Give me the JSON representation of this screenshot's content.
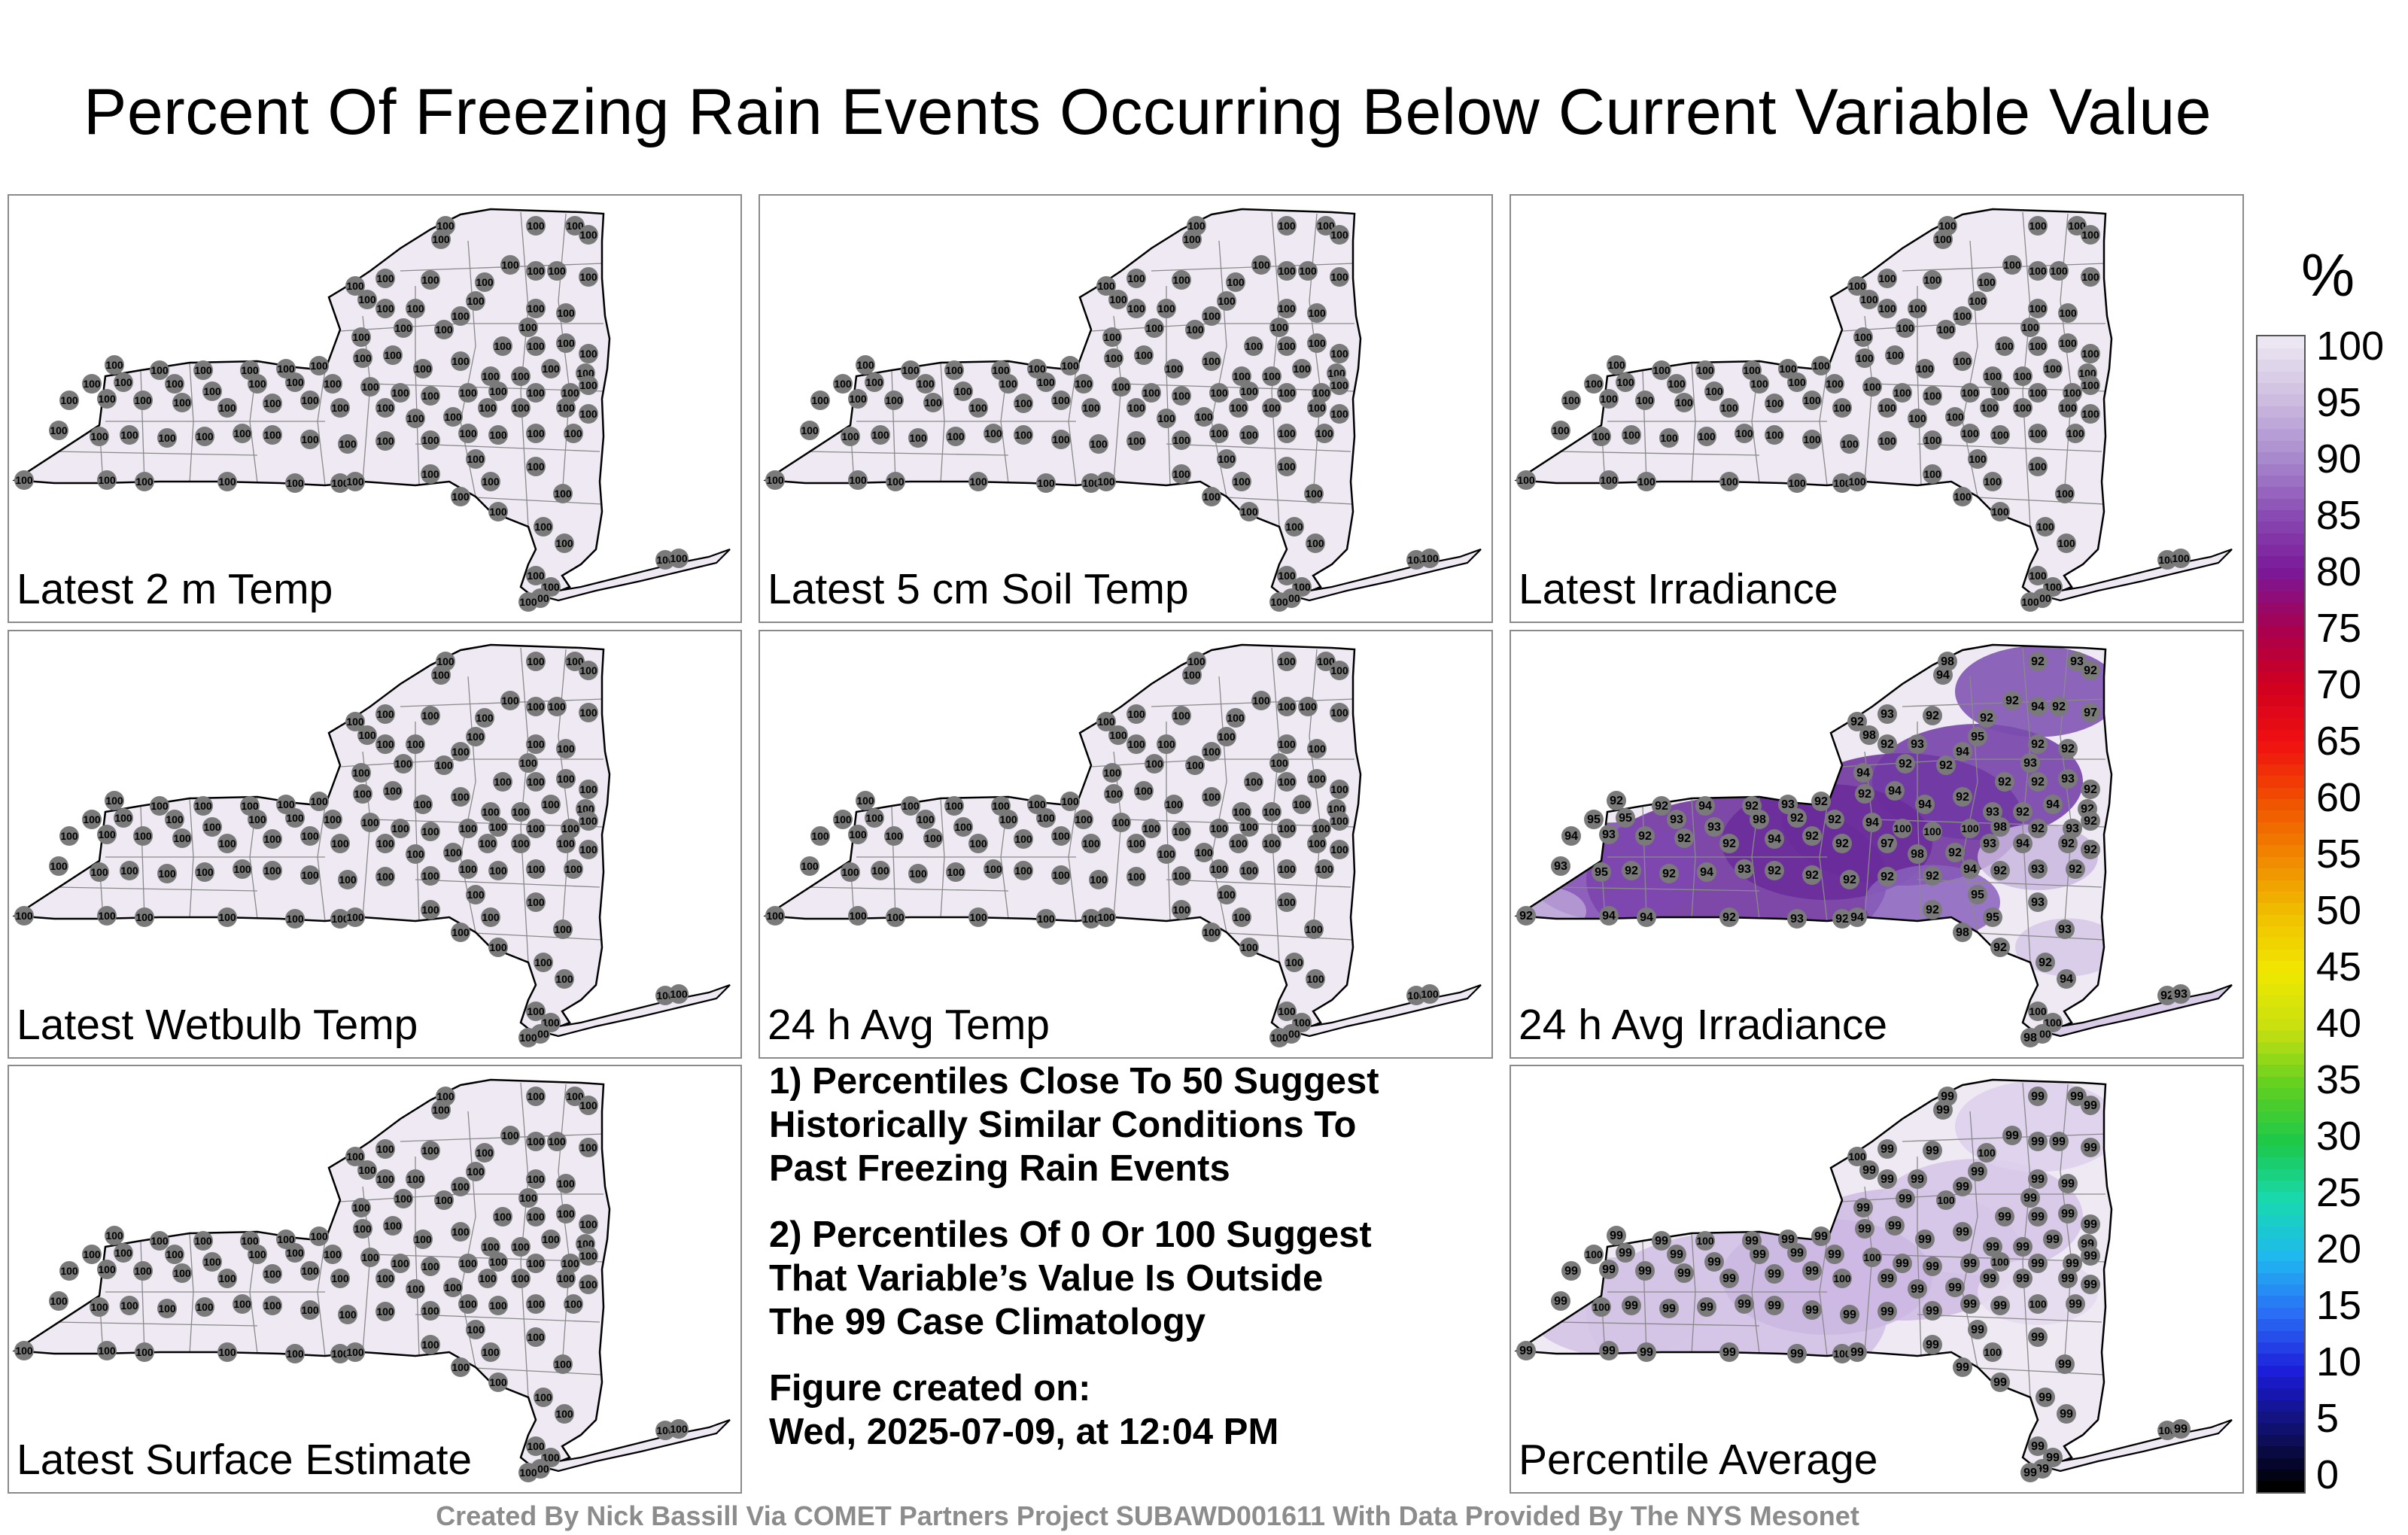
{
  "title": "Percent Of Freezing Rain Events Occurring Below Current Variable Value",
  "panels": [
    {
      "label": "Latest 2 m Temp",
      "fill": "uniform",
      "value": 100
    },
    {
      "label": "Latest 5 cm Soil Temp",
      "fill": "uniform",
      "value": 100
    },
    {
      "label": "Latest Irradiance",
      "fill": "uniform",
      "value": 100
    },
    {
      "label": "Latest Wetbulb Temp",
      "fill": "uniform",
      "value": 100
    },
    {
      "label": "24 h Avg Temp",
      "fill": "uniform",
      "value": 100
    },
    {
      "label": "24 h Avg Irradiance",
      "fill": "varied",
      "value": 92
    },
    {
      "label": "Latest Surface Estimate",
      "fill": "uniform",
      "value": 100
    },
    {
      "label": "Percentile Average",
      "fill": "varied-light",
      "value": 99
    }
  ],
  "notes": {
    "note1": [
      "1) Percentiles Close To 50 Suggest",
      "Historically Similar Conditions To",
      "Past Freezing Rain Events"
    ],
    "note2": [
      "2) Percentiles Of 0 Or 100 Suggest",
      "That Variable’s Value Is Outside",
      "The 99 Case Climatology"
    ],
    "created_label": "Figure created on:",
    "created_value": "Wed, 2025-07-09, at 12:04 PM"
  },
  "footer": "Created By Nick Bassill Via COMET Partners Project SUBAWD001611 With Data Provided By The NYS Mesonet",
  "colorbar": {
    "unit": "%",
    "ticks": [
      "100",
      "95",
      "90",
      "85",
      "80",
      "75",
      "70",
      "65",
      "60",
      "55",
      "50",
      "45",
      "40",
      "35",
      "30",
      "25",
      "20",
      "15",
      "10",
      "5",
      "0"
    ],
    "stops": [
      "#000000",
      "#10106e",
      "#1c1cd8",
      "#2a6cf5",
      "#1fb8f0",
      "#19d9b0",
      "#1cc84a",
      "#60d020",
      "#c8e010",
      "#f0e800",
      "#f0c000",
      "#f08800",
      "#f05000",
      "#f01010",
      "#d00020",
      "#a80050",
      "#7a1898",
      "#8a4cb4",
      "#a98ace",
      "#cdbce0",
      "#ece6f2"
    ]
  },
  "station_values": {
    "panel_6_values": [
      "98",
      "92",
      "93",
      "92",
      "94",
      "93",
      "92",
      "92",
      "92",
      "94",
      "92",
      "92",
      "97",
      "98",
      "92",
      "93",
      "94",
      "92",
      "92",
      "93",
      "95",
      "92",
      "92",
      "94",
      "93",
      "92",
      "92",
      "92",
      "92",
      "92",
      "94",
      "92",
      "93",
      "92",
      "92",
      "94",
      "94",
      "92",
      "93",
      "92",
      "94",
      "92",
      "95",
      "95",
      "93",
      "93",
      "98",
      "92",
      "92",
      "94",
      "100",
      "100",
      "100"
    ],
    "panel_8_values": [
      "99",
      "99",
      "99",
      "99",
      "99",
      "99",
      "100",
      "99",
      "99",
      "99",
      "100",
      "99",
      "99",
      "99",
      "99",
      "99",
      "99",
      "99",
      "99",
      "99",
      "99",
      "100",
      "99",
      "99",
      "99",
      "99",
      "99",
      "99",
      "99",
      "99",
      "100",
      "99",
      "99",
      "99",
      "99",
      "99",
      "99",
      "99",
      "99",
      "99",
      "99",
      "99",
      "100"
    ]
  }
}
